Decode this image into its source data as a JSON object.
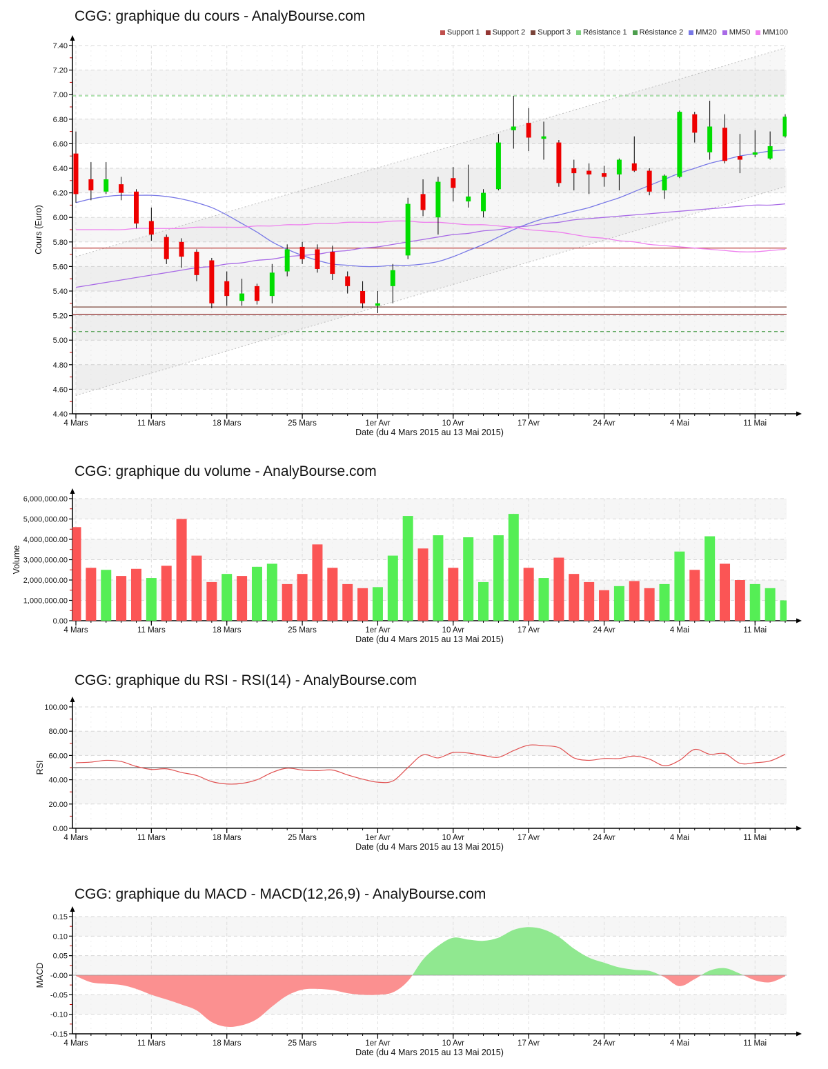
{
  "x_axis": {
    "n_points": 48,
    "tick_labels": [
      "4 Mars",
      "11 Mars",
      "18 Mars",
      "25 Mars",
      "1er Avr",
      "10 Avr",
      "17 Avr",
      "24 Avr",
      "4 Mai",
      "11 Mai"
    ],
    "tick_indices": [
      0,
      5,
      10,
      15,
      20,
      25,
      30,
      35,
      40,
      45
    ],
    "xlabel": "Date (du 4 Mars 2015 au 13 Mai 2015)"
  },
  "chart_data": [
    {
      "type": "candlestick",
      "title": "CGG: graphique du cours - AnalyBourse.com",
      "ylabel": "Cours (Euro)",
      "xlabel": "Date (du 4 Mars 2015 au 13 Mai 2015)",
      "ylim": [
        4.4,
        7.4
      ],
      "ystep": 0.2,
      "up_color": "#00dd00",
      "down_color": "#ee0000",
      "levels": [
        {
          "label": "Support 1",
          "value": 5.75,
          "color": "#c0504d",
          "style": "solid"
        },
        {
          "label": "Support 2",
          "value": 5.21,
          "color": "#943634",
          "style": "solid"
        },
        {
          "label": "Support 3",
          "value": 5.27,
          "color": "#7a453a",
          "style": "solid"
        },
        {
          "label": "Résistance 1",
          "value": 6.99,
          "color": "#7fd07f",
          "style": "dashed"
        },
        {
          "label": "Résistance 2",
          "value": 5.07,
          "color": "#4d9e4d",
          "style": "dashed"
        }
      ],
      "moving_averages": [
        {
          "label": "MM20",
          "color": "#7878e6",
          "values": [
            6.12,
            6.15,
            6.17,
            6.18,
            6.18,
            6.18,
            6.17,
            6.15,
            6.12,
            6.08,
            6.02,
            5.95,
            5.88,
            5.8,
            5.74,
            5.69,
            5.65,
            5.62,
            5.61,
            5.6,
            5.6,
            5.61,
            5.61,
            5.62,
            5.64,
            5.68,
            5.73,
            5.78,
            5.84,
            5.9,
            5.95,
            5.99,
            6.02,
            6.05,
            6.08,
            6.12,
            6.16,
            6.21,
            6.26,
            6.31,
            6.36,
            6.4,
            6.44,
            6.47,
            6.5,
            6.52,
            6.54,
            6.55
          ]
        },
        {
          "label": "MM50",
          "color": "#a86ae6",
          "values": [
            5.43,
            5.45,
            5.47,
            5.49,
            5.51,
            5.53,
            5.55,
            5.57,
            5.59,
            5.6,
            5.62,
            5.63,
            5.65,
            5.66,
            5.68,
            5.69,
            5.7,
            5.72,
            5.73,
            5.75,
            5.76,
            5.78,
            5.8,
            5.82,
            5.84,
            5.86,
            5.87,
            5.89,
            5.9,
            5.92,
            5.93,
            5.95,
            5.96,
            5.98,
            5.99,
            6.0,
            6.01,
            6.02,
            6.03,
            6.04,
            6.05,
            6.06,
            6.07,
            6.08,
            6.09,
            6.1,
            6.1,
            6.11
          ]
        },
        {
          "label": "MM100",
          "color": "#ee7fee",
          "values": [
            5.9,
            5.9,
            5.9,
            5.9,
            5.91,
            5.91,
            5.91,
            5.91,
            5.92,
            5.92,
            5.92,
            5.92,
            5.93,
            5.93,
            5.94,
            5.94,
            5.95,
            5.95,
            5.96,
            5.96,
            5.96,
            5.97,
            5.97,
            5.96,
            5.96,
            5.95,
            5.94,
            5.94,
            5.93,
            5.92,
            5.9,
            5.89,
            5.88,
            5.86,
            5.84,
            5.83,
            5.81,
            5.8,
            5.78,
            5.77,
            5.76,
            5.75,
            5.74,
            5.73,
            5.72,
            5.72,
            5.73,
            5.74
          ]
        }
      ],
      "channel": {
        "upper_start": 5.68,
        "upper_end": 7.38,
        "lower_start": 4.55,
        "lower_end": 6.25,
        "color": "#bbbbbb"
      },
      "ohlc": [
        [
          6.52,
          6.7,
          6.12,
          6.19
        ],
        [
          6.31,
          6.45,
          6.14,
          6.22
        ],
        [
          6.21,
          6.45,
          6.19,
          6.31
        ],
        [
          6.27,
          6.33,
          6.14,
          6.2
        ],
        [
          6.21,
          6.23,
          5.91,
          5.95
        ],
        [
          5.97,
          6.08,
          5.81,
          5.86
        ],
        [
          5.84,
          5.86,
          5.62,
          5.66
        ],
        [
          5.8,
          5.83,
          5.59,
          5.68
        ],
        [
          5.72,
          5.74,
          5.48,
          5.53
        ],
        [
          5.65,
          5.67,
          5.26,
          5.3
        ],
        [
          5.48,
          5.56,
          5.28,
          5.36
        ],
        [
          5.32,
          5.5,
          5.28,
          5.38
        ],
        [
          5.44,
          5.46,
          5.29,
          5.32
        ],
        [
          5.36,
          5.62,
          5.3,
          5.55
        ],
        [
          5.56,
          5.78,
          5.52,
          5.74
        ],
        [
          5.76,
          5.8,
          5.62,
          5.66
        ],
        [
          5.74,
          5.78,
          5.55,
          5.58
        ],
        [
          5.72,
          5.77,
          5.49,
          5.54
        ],
        [
          5.52,
          5.56,
          5.38,
          5.44
        ],
        [
          5.4,
          5.48,
          5.26,
          5.3
        ],
        [
          5.28,
          5.4,
          5.22,
          5.3
        ],
        [
          5.44,
          5.62,
          5.3,
          5.57
        ],
        [
          5.69,
          6.16,
          5.66,
          6.11
        ],
        [
          6.19,
          6.31,
          6.01,
          6.06
        ],
        [
          6.0,
          6.33,
          5.86,
          6.29
        ],
        [
          6.32,
          6.41,
          6.13,
          6.24
        ],
        [
          6.13,
          6.43,
          6.08,
          6.17
        ],
        [
          6.05,
          6.23,
          6.0,
          6.2
        ],
        [
          6.23,
          6.68,
          6.22,
          6.61
        ],
        [
          6.71,
          6.99,
          6.56,
          6.74
        ],
        [
          6.77,
          6.89,
          6.54,
          6.65
        ],
        [
          6.64,
          6.78,
          6.47,
          6.66
        ],
        [
          6.61,
          6.63,
          6.25,
          6.28
        ],
        [
          6.4,
          6.47,
          6.22,
          6.36
        ],
        [
          6.38,
          6.44,
          6.19,
          6.35
        ],
        [
          6.36,
          6.42,
          6.25,
          6.33
        ],
        [
          6.35,
          6.48,
          6.22,
          6.47
        ],
        [
          6.44,
          6.66,
          6.37,
          6.38
        ],
        [
          6.38,
          6.4,
          6.18,
          6.21
        ],
        [
          6.22,
          6.35,
          6.15,
          6.34
        ],
        [
          6.33,
          6.87,
          6.32,
          6.86
        ],
        [
          6.84,
          6.86,
          6.61,
          6.69
        ],
        [
          6.53,
          6.95,
          6.47,
          6.74
        ],
        [
          6.73,
          6.84,
          6.44,
          6.46
        ],
        [
          6.5,
          6.68,
          6.36,
          6.47
        ],
        [
          6.51,
          6.71,
          6.49,
          6.53
        ],
        [
          6.48,
          6.7,
          6.47,
          6.58
        ],
        [
          6.66,
          6.84,
          6.65,
          6.82
        ]
      ]
    },
    {
      "type": "bar",
      "title": "CGG: graphique du volume - AnalyBourse.com",
      "ylabel": "Volume",
      "xlabel": "Date (du 4 Mars 2015 au 13 Mai 2015)",
      "ylim": [
        0,
        6000000
      ],
      "ystep": 1000000,
      "up_color": "#55ee55",
      "down_color": "#fb5555",
      "values": [
        4600000,
        2600000,
        2500000,
        2200000,
        2550000,
        2100000,
        2700000,
        5000000,
        3200000,
        1900000,
        2300000,
        2200000,
        2650000,
        2800000,
        1800000,
        2300000,
        3750000,
        2600000,
        1800000,
        1600000,
        1650000,
        3200000,
        5150000,
        3550000,
        4200000,
        2600000,
        4100000,
        1900000,
        4200000,
        5250000,
        2600000,
        2100000,
        3100000,
        2300000,
        1900000,
        1500000,
        1700000,
        1950000,
        1600000,
        1800000,
        3400000,
        2500000,
        4150000,
        2800000,
        2000000,
        1800000,
        1600000,
        1000000
      ],
      "direction": [
        "down",
        "down",
        "up",
        "down",
        "down",
        "up",
        "down",
        "down",
        "down",
        "down",
        "up",
        "down",
        "up",
        "up",
        "down",
        "down",
        "down",
        "down",
        "down",
        "down",
        "up",
        "up",
        "up",
        "down",
        "up",
        "down",
        "up",
        "up",
        "up",
        "up",
        "down",
        "up",
        "down",
        "down",
        "down",
        "down",
        "up",
        "down",
        "down",
        "up",
        "up",
        "down",
        "up",
        "down",
        "down",
        "up",
        "up",
        "up"
      ]
    },
    {
      "type": "line",
      "title": "CGG: graphique du RSI - RSI(14) - AnalyBourse.com",
      "ylabel": "RSI",
      "xlabel": "Date (du 4 Mars 2015 au 13 Mai 2015)",
      "ylim": [
        0,
        100
      ],
      "ystep": 20,
      "line_color": "#e05050",
      "midline": 50,
      "midline_color": "#666666",
      "values": [
        54,
        54.5,
        56,
        55,
        51,
        48.5,
        49,
        46,
        43.5,
        38.5,
        36.5,
        37,
        40,
        46,
        49.5,
        48,
        47.5,
        48,
        44,
        40.5,
        38,
        39,
        50,
        60.5,
        58,
        62.5,
        62,
        60,
        58.5,
        64,
        68.5,
        68,
        66.5,
        58,
        56,
        57.5,
        57.5,
        59.5,
        57,
        51.5,
        56,
        65,
        61,
        61.5,
        53.5,
        54,
        55.5,
        61
      ]
    },
    {
      "type": "area",
      "title": "CGG: graphique du MACD - MACD(12,26,9) - AnalyBourse.com",
      "ylabel": "MACD",
      "xlabel": "Date (du 4 Mars 2015 au 13 Mai 2015)",
      "ylim": [
        -0.15,
        0.15
      ],
      "ystep": 0.05,
      "pos_color": "#90e890",
      "neg_color": "#fb9090",
      "values": [
        -0.002,
        -0.018,
        -0.022,
        -0.025,
        -0.035,
        -0.05,
        -0.062,
        -0.075,
        -0.09,
        -0.12,
        -0.132,
        -0.128,
        -0.112,
        -0.08,
        -0.052,
        -0.037,
        -0.035,
        -0.038,
        -0.046,
        -0.05,
        -0.05,
        -0.044,
        -0.015,
        0.04,
        0.075,
        0.096,
        0.091,
        0.088,
        0.096,
        0.116,
        0.123,
        0.117,
        0.098,
        0.068,
        0.045,
        0.032,
        0.02,
        0.014,
        0.011,
        -0.005,
        -0.028,
        -0.01,
        0.012,
        0.018,
        0.004,
        -0.013,
        -0.018,
        -0.003
      ]
    }
  ]
}
